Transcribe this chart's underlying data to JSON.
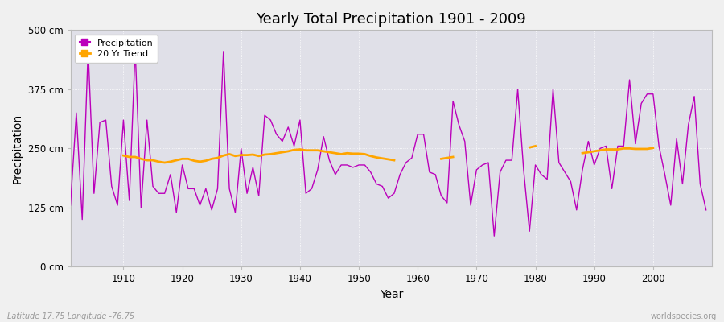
{
  "title": "Yearly Total Precipitation 1901 - 2009",
  "xlabel": "Year",
  "ylabel": "Precipitation",
  "subtitle_left": "Latitude 17.75 Longitude -76.75",
  "subtitle_right": "worldspecies.org",
  "legend_entries": [
    "Precipitation",
    "20 Yr Trend"
  ],
  "precip_color": "#bb00bb",
  "trend_color": "#ffa500",
  "fig_facecolor": "#f0f0f0",
  "plot_facecolor": "#e0e0e8",
  "grid_color": "#ffffff",
  "ylim": [
    0,
    500
  ],
  "yticks": [
    0,
    125,
    250,
    375,
    500
  ],
  "ytick_labels": [
    "0 cm",
    "125 cm",
    "250 cm",
    "375 cm",
    "500 cm"
  ],
  "xlim_left": 1901,
  "xlim_right": 2010,
  "xticks": [
    1910,
    1920,
    1930,
    1940,
    1950,
    1960,
    1970,
    1980,
    1990,
    2000
  ],
  "years": [
    1901,
    1902,
    1903,
    1904,
    1905,
    1906,
    1907,
    1908,
    1909,
    1910,
    1911,
    1912,
    1913,
    1914,
    1915,
    1916,
    1917,
    1918,
    1919,
    1920,
    1921,
    1922,
    1923,
    1924,
    1925,
    1926,
    1927,
    1928,
    1929,
    1930,
    1931,
    1932,
    1933,
    1934,
    1935,
    1936,
    1937,
    1938,
    1939,
    1940,
    1941,
    1942,
    1943,
    1944,
    1945,
    1946,
    1947,
    1948,
    1949,
    1950,
    1951,
    1952,
    1953,
    1954,
    1955,
    1956,
    1957,
    1958,
    1959,
    1960,
    1961,
    1962,
    1963,
    1964,
    1965,
    1966,
    1967,
    1968,
    1969,
    1970,
    1971,
    1972,
    1973,
    1974,
    1975,
    1976,
    1977,
    1978,
    1979,
    1980,
    1981,
    1982,
    1983,
    1984,
    1985,
    1986,
    1987,
    1988,
    1989,
    1990,
    1991,
    1992,
    1993,
    1994,
    1995,
    1996,
    1997,
    1998,
    1999,
    2000,
    2001,
    2002,
    2003,
    2004,
    2005,
    2006,
    2007,
    2008,
    2009
  ],
  "precip": [
    130,
    325,
    100,
    460,
    155,
    305,
    310,
    170,
    130,
    310,
    140,
    460,
    125,
    310,
    170,
    155,
    155,
    195,
    115,
    215,
    165,
    165,
    130,
    165,
    120,
    165,
    455,
    165,
    115,
    250,
    155,
    210,
    150,
    320,
    310,
    280,
    265,
    295,
    255,
    310,
    155,
    165,
    205,
    275,
    225,
    195,
    215,
    215,
    210,
    215,
    215,
    200,
    175,
    170,
    145,
    155,
    195,
    220,
    230,
    280,
    280,
    200,
    195,
    150,
    135,
    350,
    300,
    265,
    130,
    205,
    215,
    220,
    65,
    200,
    225,
    225,
    375,
    205,
    75,
    215,
    195,
    185,
    375,
    220,
    200,
    180,
    120,
    205,
    265,
    215,
    250,
    255,
    165,
    255,
    255,
    395,
    260,
    345,
    365,
    365,
    255,
    195,
    130,
    270,
    175,
    300,
    360,
    175,
    120
  ],
  "trend_segments": [
    {
      "years": [
        1910,
        1911,
        1912,
        1913,
        1914,
        1915,
        1916,
        1917,
        1918,
        1919,
        1920,
        1921,
        1922,
        1923,
        1924,
        1925,
        1926,
        1927,
        1928,
        1929,
        1930,
        1931,
        1932,
        1933,
        1934,
        1935,
        1936,
        1937,
        1938,
        1939,
        1940,
        1941,
        1942,
        1943,
        1944,
        1945,
        1946,
        1947,
        1948,
        1949,
        1950,
        1951,
        1952,
        1953,
        1954,
        1955,
        1956
      ],
      "values": [
        235,
        232,
        232,
        228,
        225,
        225,
        222,
        220,
        222,
        225,
        228,
        228,
        224,
        222,
        224,
        228,
        230,
        235,
        238,
        234,
        236,
        236,
        237,
        234,
        237,
        238,
        240,
        242,
        244,
        247,
        248,
        246,
        246,
        246,
        244,
        242,
        240,
        238,
        240,
        239,
        239,
        238,
        234,
        231,
        229,
        227,
        225
      ]
    },
    {
      "years": [
        1964,
        1965,
        1966
      ],
      "values": [
        228,
        230,
        232
      ]
    },
    {
      "years": [
        1979,
        1980
      ],
      "values": [
        252,
        255
      ]
    },
    {
      "years": [
        1988,
        1989,
        1990,
        1991,
        1992,
        1993,
        1994,
        1995,
        1996,
        1997,
        1998,
        1999,
        2000
      ],
      "values": [
        240,
        242,
        244,
        246,
        248,
        248,
        248,
        250,
        250,
        249,
        249,
        249,
        251
      ]
    }
  ]
}
